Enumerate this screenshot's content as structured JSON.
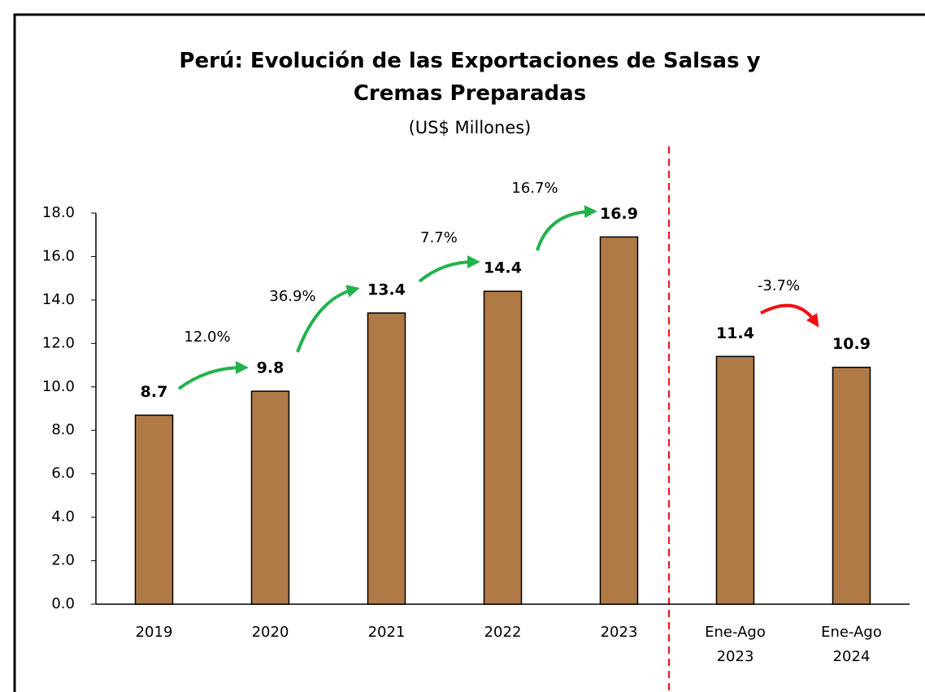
{
  "chart_data": {
    "type": "bar",
    "title": "Perú: Evolución de las Exportaciones de Salsas y Cremas Preparadas",
    "subtitle": "(US$ Millones)",
    "categories": [
      "2019",
      "2020",
      "2021",
      "2022",
      "2023",
      "Ene-Ago 2023",
      "Ene-Ago 2024"
    ],
    "values": [
      8.7,
      9.8,
      13.4,
      14.4,
      16.9,
      11.4,
      10.9
    ],
    "color": "#b07a47",
    "ylim": [
      0,
      18
    ],
    "yticks": [
      {
        "value": 0,
        "label": "0.0"
      },
      {
        "value": 2,
        "label": "2.0"
      },
      {
        "value": 4,
        "label": "4.0"
      },
      {
        "value": 6,
        "label": "6.0"
      },
      {
        "value": 8,
        "label": "8.0"
      },
      {
        "value": 10,
        "label": "10.0"
      },
      {
        "value": 12,
        "label": "12.0"
      },
      {
        "value": 14,
        "label": "14.0"
      },
      {
        "value": 16,
        "label": "16.0"
      },
      {
        "value": 18,
        "label": "18.0"
      }
    ],
    "grid": false,
    "annotations": [
      "12.0%",
      "36.9%",
      "7.7%",
      "16.7%",
      "-3.7%"
    ]
  }
}
